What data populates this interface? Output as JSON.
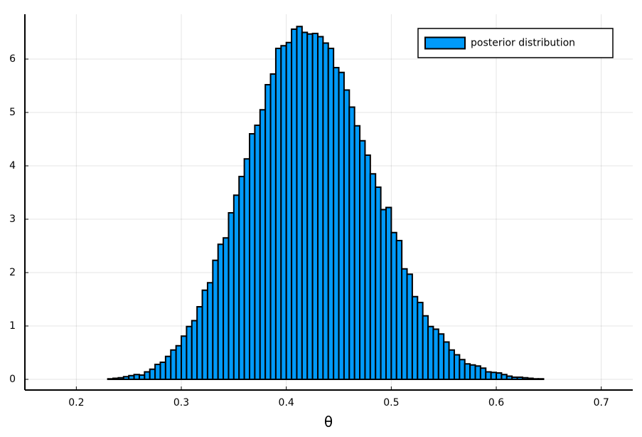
{
  "chart_data": {
    "type": "histogram",
    "xlabel": "θ",
    "bins": [
      0.185,
      0.19,
      0.195,
      0.2,
      0.205,
      0.21,
      0.215,
      0.22,
      0.225,
      0.23,
      0.235,
      0.24,
      0.245,
      0.25,
      0.255,
      0.26,
      0.265,
      0.27,
      0.275,
      0.28,
      0.285,
      0.29,
      0.295,
      0.3,
      0.305,
      0.31,
      0.315,
      0.32,
      0.325,
      0.33,
      0.335,
      0.34,
      0.345,
      0.35,
      0.355,
      0.36,
      0.365,
      0.37,
      0.375,
      0.38,
      0.385,
      0.39,
      0.395,
      0.4,
      0.405,
      0.41,
      0.415,
      0.42,
      0.425,
      0.43,
      0.435,
      0.44,
      0.445,
      0.45,
      0.455,
      0.46,
      0.465,
      0.47,
      0.475,
      0.48,
      0.485,
      0.49,
      0.495,
      0.5,
      0.505,
      0.51,
      0.515,
      0.52,
      0.525,
      0.53,
      0.535,
      0.54,
      0.545,
      0.55,
      0.555,
      0.56,
      0.565,
      0.57,
      0.575,
      0.58,
      0.585,
      0.59,
      0.595,
      0.6,
      0.605,
      0.61,
      0.615,
      0.62,
      0.625,
      0.63,
      0.635,
      0.64,
      0.645,
      0.65,
      0.655,
      0.66,
      0.665,
      0.67,
      0.675,
      0.68,
      0.685,
      0.69,
      0.695
    ],
    "series": [
      {
        "name": "posterior distribution",
        "color": "#009af9",
        "values": [
          0,
          0,
          0,
          0,
          0,
          0,
          0,
          0,
          0,
          0.01,
          0.02,
          0.03,
          0.05,
          0.07,
          0.09,
          0.08,
          0.14,
          0.19,
          0.28,
          0.32,
          0.43,
          0.55,
          0.63,
          0.81,
          0.99,
          1.1,
          1.36,
          1.67,
          1.81,
          2.23,
          2.53,
          2.65,
          3.12,
          3.45,
          3.8,
          4.13,
          4.6,
          4.76,
          5.05,
          5.52,
          5.72,
          6.2,
          6.25,
          6.31,
          6.56,
          6.61,
          6.5,
          6.47,
          6.48,
          6.42,
          6.3,
          6.2,
          5.84,
          5.75,
          5.42,
          5.1,
          4.75,
          4.47,
          4.2,
          3.85,
          3.6,
          3.18,
          3.22,
          2.75,
          2.6,
          2.07,
          1.97,
          1.55,
          1.44,
          1.19,
          0.99,
          0.94,
          0.85,
          0.7,
          0.55,
          0.46,
          0.37,
          0.29,
          0.27,
          0.25,
          0.21,
          0.14,
          0.13,
          0.12,
          0.09,
          0.06,
          0.04,
          0.04,
          0.03,
          0.02,
          0.01,
          0.01,
          0,
          0,
          0,
          0,
          0,
          0,
          0,
          0,
          0,
          0
        ]
      }
    ],
    "xlim": [
      0.151,
      0.73
    ],
    "xticks": [
      0.2,
      0.3,
      0.4,
      0.5,
      0.6,
      0.7
    ],
    "ylim": [
      -0.2,
      6.84
    ],
    "yticks": [
      0,
      1,
      2,
      3,
      4,
      5,
      6
    ],
    "grid": true,
    "legend": "top-right"
  }
}
